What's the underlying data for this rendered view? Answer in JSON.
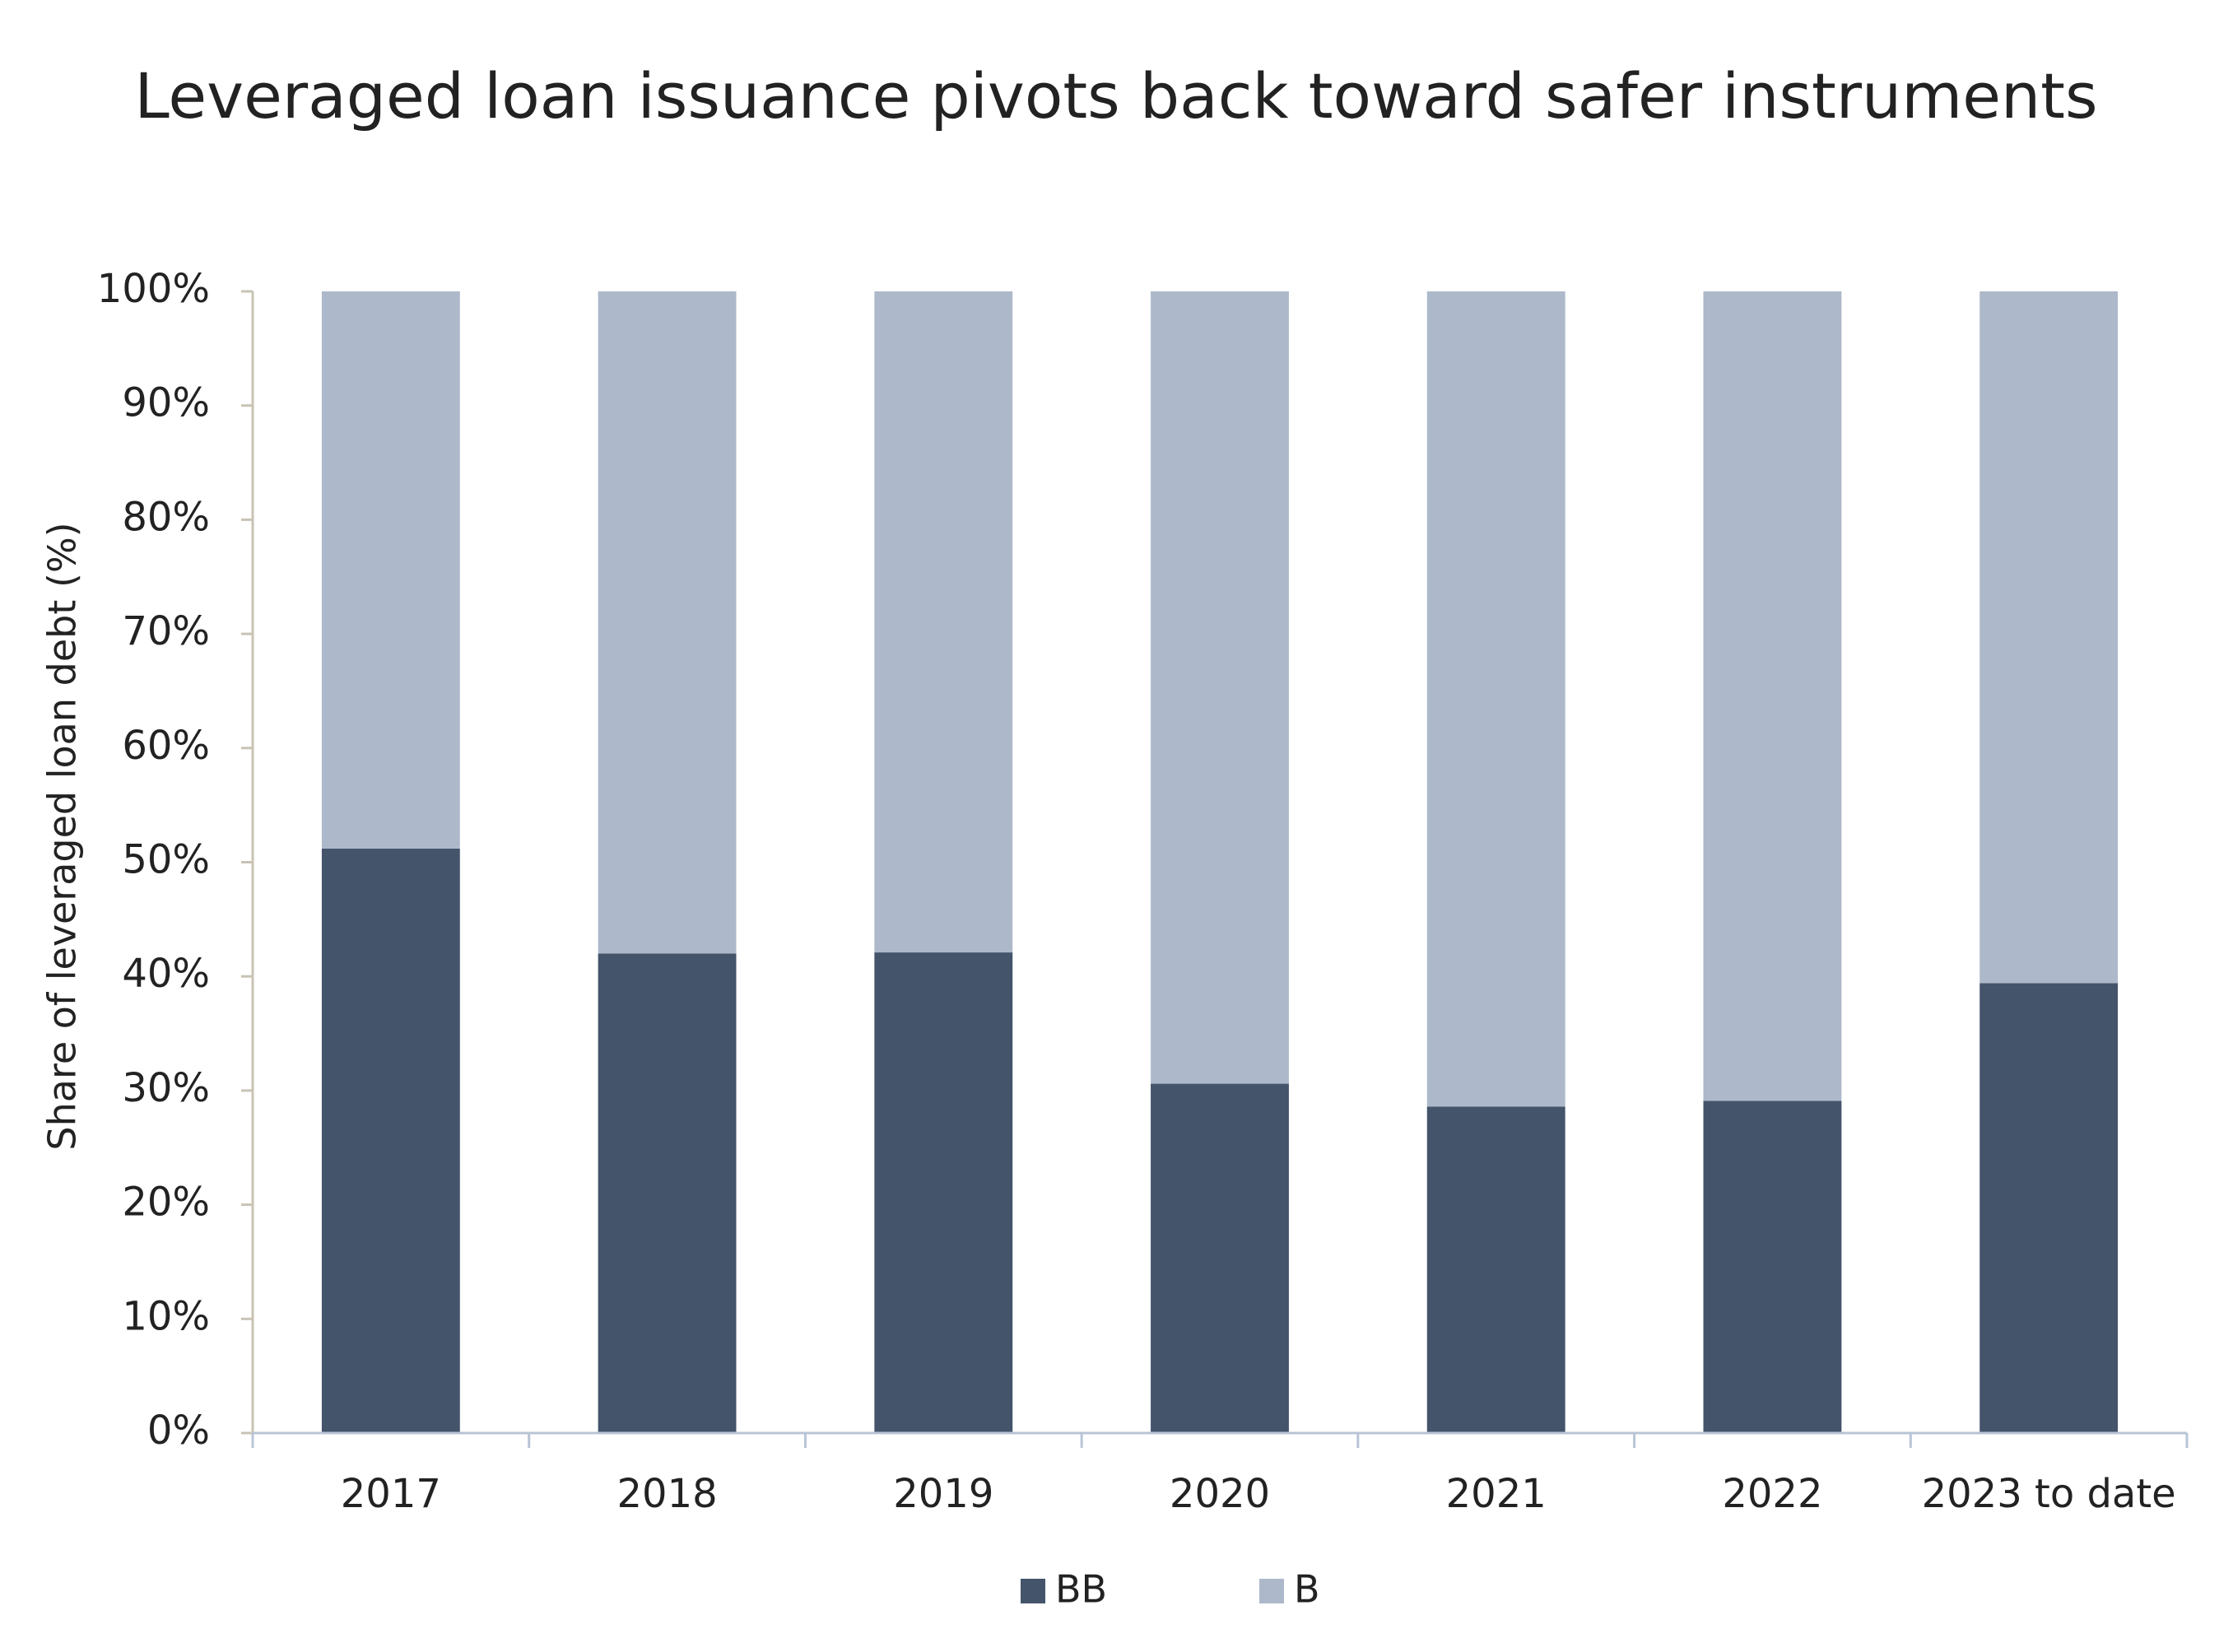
{
  "chart_data": {
    "type": "stacked_bar",
    "title": "Leveraged loan issuance pivots back toward safer instruments",
    "y_label": "Share of leveraged loan debt (%)",
    "categories": [
      "2017",
      "2018",
      "2019",
      "2020",
      "2021",
      "2022",
      "2023 to date"
    ],
    "series": [
      {
        "name": "BB",
        "color": "#44546a",
        "values": [
          51.2,
          42,
          42.1,
          30.6,
          28.6,
          29.1,
          39.4
        ]
      },
      {
        "name": "B",
        "color": "#adb9ca",
        "values": [
          48.8,
          58,
          57.9,
          69.4,
          71.4,
          70.9,
          60.6
        ]
      }
    ],
    "ylim": [
      0,
      100
    ],
    "yticks": [
      {
        "value": 0,
        "label": "0%"
      },
      {
        "value": 10,
        "label": "10%"
      },
      {
        "value": 20,
        "label": "20%"
      },
      {
        "value": 30,
        "label": "30%"
      },
      {
        "value": 40,
        "label": "40%"
      },
      {
        "value": 50,
        "label": "50%"
      },
      {
        "value": 60,
        "label": "60%"
      },
      {
        "value": 70,
        "label": "70%"
      },
      {
        "value": 80,
        "label": "80%"
      },
      {
        "value": 90,
        "label": "90%"
      },
      {
        "value": 100,
        "label": "100%"
      }
    ],
    "grid": false,
    "legend": "bottom"
  }
}
